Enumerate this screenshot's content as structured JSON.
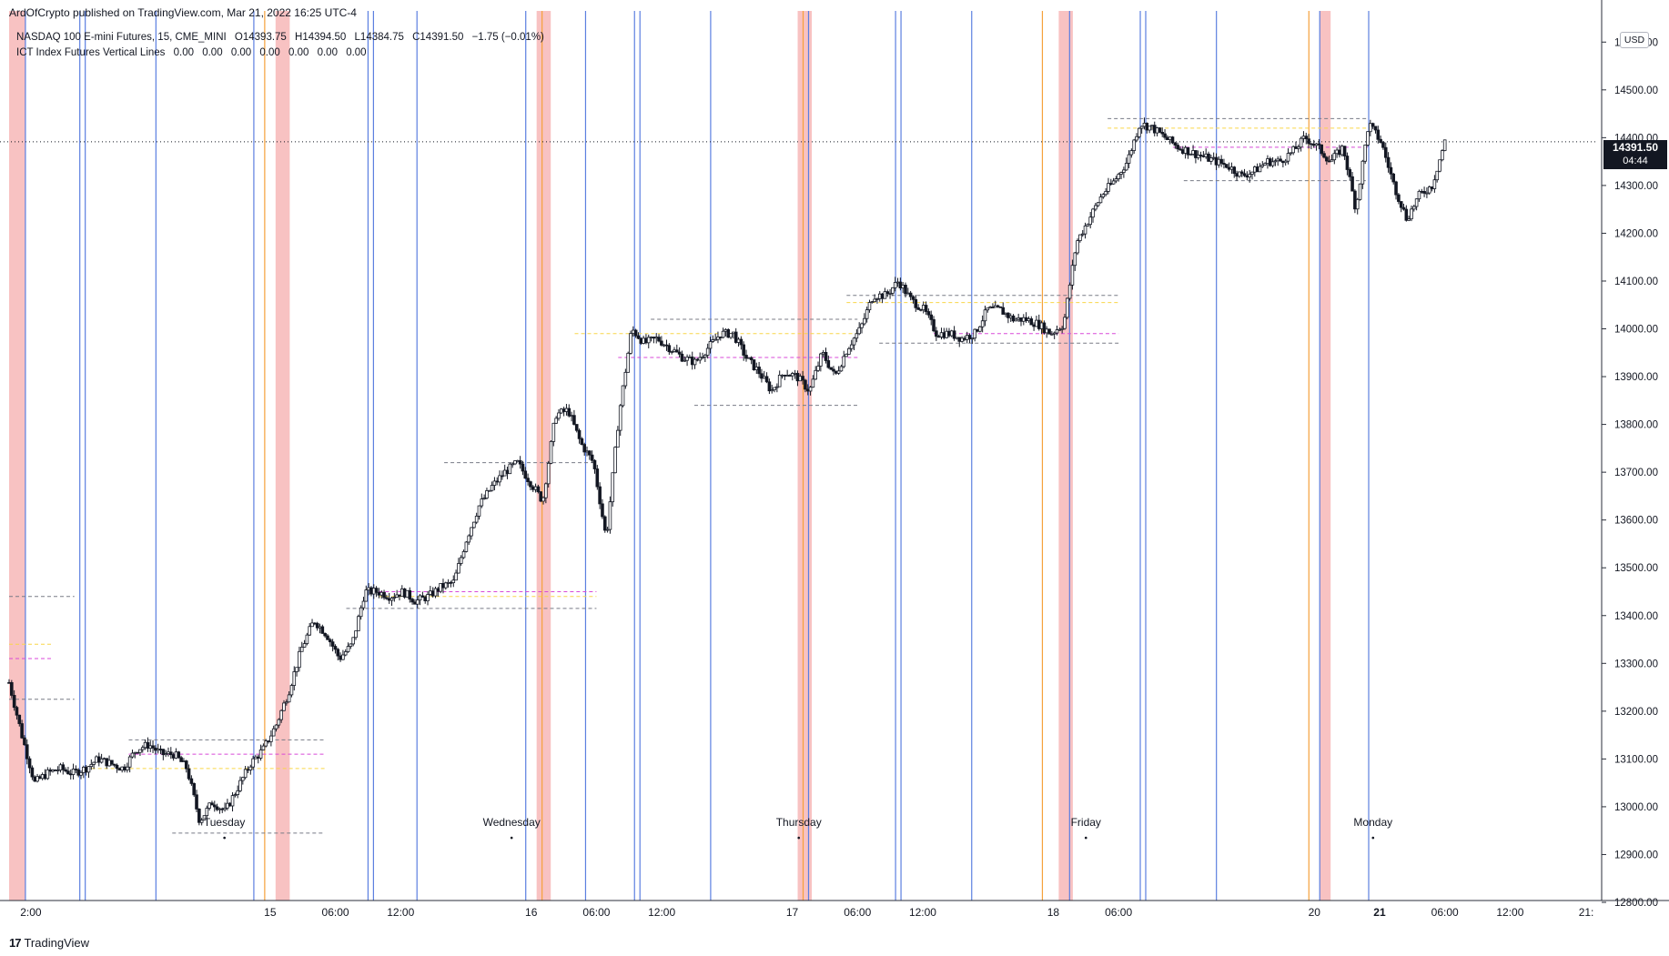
{
  "header": {
    "publisher_line": "ArdOfCrypto published on TradingView.com, Mar 21, 2022 16:25 UTC-4"
  },
  "legend": {
    "line1": {
      "symbol": "NASDAQ 100 E-mini Futures, 15, CME_MINI",
      "open": "O14393.75",
      "high": "H14394.50",
      "low": "L14384.75",
      "close": "C14391.50",
      "change": "−1.75 (−0.01%)"
    },
    "line2": {
      "indicator": "ICT Index Futures Vertical Lines",
      "values": [
        "0.00",
        "0.00",
        "0.00",
        "0.00",
        "0.00",
        "0.00",
        "0.00"
      ]
    }
  },
  "price_axis": {
    "currency": "USD",
    "last_price": "14391.50",
    "countdown": "04:44"
  },
  "footer": {
    "brand": "TradingView",
    "brand_mark": "17"
  },
  "colors": {
    "candle_up": "#ffffff",
    "candle_down": "#131722",
    "candle_border": "#131722",
    "blue_line": "#5b7fe0",
    "orange_line": "#f5a13a",
    "red_zone": "#f7b7b7",
    "dash_gray": "#787b86",
    "dash_yellow": "#f9d648",
    "dash_magenta": "#d849d8"
  },
  "chart_data": {
    "type": "candlestick",
    "title": "",
    "ylim": [
      12800,
      14650
    ],
    "y_ticks": [
      12800,
      12900,
      13000,
      13100,
      13200,
      13300,
      13400,
      13500,
      13600,
      13700,
      13800,
      13900,
      14000,
      14100,
      14200,
      14300,
      14400,
      14500,
      14600
    ],
    "y_tick_labels": [
      "12800.00",
      "12900.00",
      "13000.00",
      "13100.00",
      "13200.00",
      "13300.00",
      "13400.00",
      "13500.00",
      "13600.00",
      "13700.00",
      "13800.00",
      "13900.00",
      "14000.00",
      "14100.00",
      "14200.00",
      "14300.00",
      "14400.00",
      "14500.00",
      "14600.00"
    ],
    "x_ticks": [
      {
        "label": "2:00",
        "hour": 2
      },
      {
        "label": "15",
        "hour": 24
      },
      {
        "label": "06:00",
        "hour": 30
      },
      {
        "label": "12:00",
        "hour": 36
      },
      {
        "label": "16",
        "hour": 48
      },
      {
        "label": "06:00",
        "hour": 54
      },
      {
        "label": "12:00",
        "hour": 60
      },
      {
        "label": "17",
        "hour": 72
      },
      {
        "label": "06:00",
        "hour": 78
      },
      {
        "label": "12:00",
        "hour": 84
      },
      {
        "label": "18",
        "hour": 96
      },
      {
        "label": "06:00",
        "hour": 102
      },
      {
        "label": "20",
        "hour": 120
      },
      {
        "label": "21",
        "hour": 126
      },
      {
        "label": "06:00",
        "hour": 132
      },
      {
        "label": "12:00",
        "hour": 138
      },
      {
        "label": "21:",
        "hour": 145
      }
    ],
    "bold_x_ticks": [
      "21"
    ],
    "day_labels": [
      {
        "label": "Tuesday",
        "hour": 18
      },
      {
        "label": "Wednesday",
        "hour": 42
      },
      {
        "label": "Thursday",
        "hour": 66
      },
      {
        "label": "Friday",
        "hour": 90
      },
      {
        "label": "Monday",
        "hour": 114
      }
    ],
    "vertical_lines": {
      "blue": [
        1.5,
        6.5,
        7,
        13.5,
        22.5,
        33,
        33.5,
        37.5,
        47.5,
        53,
        57.5,
        58,
        64.5,
        73.5,
        81.5,
        82,
        88.5,
        97.5,
        104,
        104.5,
        111,
        120.5,
        125
      ],
      "orange": [
        23.5,
        49,
        73,
        95,
        119.5
      ],
      "red_zones": [
        [
          0,
          1.5
        ],
        [
          24.5,
          25.8
        ],
        [
          48.5,
          49.8
        ],
        [
          72.5,
          73.8
        ],
        [
          96.5,
          97.8
        ],
        [
          120.5,
          121.5
        ]
      ]
    },
    "levels": [
      {
        "color": "gray",
        "style": "dashed",
        "y": 13440,
        "x": [
          0,
          6
        ]
      },
      {
        "color": "yellow",
        "style": "dashed",
        "y": 13340,
        "x": [
          0,
          4
        ]
      },
      {
        "color": "magenta",
        "style": "dashed",
        "y": 13310,
        "x": [
          0,
          4
        ]
      },
      {
        "color": "gray",
        "style": "dashed",
        "y": 13225,
        "x": [
          0,
          6
        ]
      },
      {
        "color": "gray",
        "style": "dashed",
        "y": 13140,
        "x": [
          11,
          29
        ]
      },
      {
        "color": "magenta",
        "style": "dashed",
        "y": 13110,
        "x": [
          11,
          29
        ]
      },
      {
        "color": "yellow",
        "style": "dashed",
        "y": 13080,
        "x": [
          7,
          29
        ]
      },
      {
        "color": "gray",
        "style": "dashed",
        "y": 12945,
        "x": [
          15,
          29
        ]
      },
      {
        "color": "gray",
        "style": "dashed",
        "y": 13720,
        "x": [
          40,
          54
        ]
      },
      {
        "color": "magenta",
        "style": "dashed",
        "y": 13450,
        "x": [
          34,
          54
        ]
      },
      {
        "color": "yellow",
        "style": "dashed",
        "y": 13440,
        "x": [
          34,
          54
        ]
      },
      {
        "color": "gray",
        "style": "dashed",
        "y": 13415,
        "x": [
          31,
          54
        ]
      },
      {
        "color": "gray",
        "style": "dashed",
        "y": 14020,
        "x": [
          59,
          78
        ]
      },
      {
        "color": "yellow",
        "style": "dashed",
        "y": 13990,
        "x": [
          52,
          78
        ]
      },
      {
        "color": "magenta",
        "style": "dashed",
        "y": 13940,
        "x": [
          56,
          78
        ]
      },
      {
        "color": "gray",
        "style": "dashed",
        "y": 13840,
        "x": [
          63,
          78
        ]
      },
      {
        "color": "gray",
        "style": "dashed",
        "y": 14070,
        "x": [
          77,
          102
        ]
      },
      {
        "color": "yellow",
        "style": "dashed",
        "y": 14055,
        "x": [
          77,
          102
        ]
      },
      {
        "color": "magenta",
        "style": "dashed",
        "y": 13990,
        "x": [
          85,
          102
        ]
      },
      {
        "color": "gray",
        "style": "dashed",
        "y": 13970,
        "x": [
          80,
          102
        ]
      },
      {
        "color": "gray",
        "style": "dashed",
        "y": 14440,
        "x": [
          101,
          125
        ]
      },
      {
        "color": "yellow",
        "style": "dashed",
        "y": 14420,
        "x": [
          101,
          125
        ]
      },
      {
        "color": "magenta",
        "style": "dashed",
        "y": 14380,
        "x": [
          107,
          125
        ]
      },
      {
        "color": "gray",
        "style": "dashed",
        "y": 14310,
        "x": [
          108,
          125
        ]
      }
    ],
    "last_price_line": 14391.5,
    "price_path": [
      [
        0,
        13260
      ],
      [
        1,
        13150
      ],
      [
        2,
        13050
      ],
      [
        3,
        13070
      ],
      [
        4,
        13080
      ],
      [
        5,
        13070
      ],
      [
        6,
        13080
      ],
      [
        7,
        13100
      ],
      [
        8,
        13090
      ],
      [
        9,
        13080
      ],
      [
        10,
        13120
      ],
      [
        11,
        13130
      ],
      [
        12,
        13110
      ],
      [
        13,
        13110
      ],
      [
        14,
        13080
      ],
      [
        15,
        12970
      ],
      [
        16,
        13010
      ],
      [
        17,
        12990
      ],
      [
        18,
        13040
      ],
      [
        19,
        13090
      ],
      [
        20,
        13120
      ],
      [
        21,
        13170
      ],
      [
        22,
        13240
      ],
      [
        23,
        13330
      ],
      [
        24,
        13390
      ],
      [
        25,
        13360
      ],
      [
        26,
        13310
      ],
      [
        27,
        13340
      ],
      [
        28,
        13450
      ],
      [
        29,
        13450
      ],
      [
        30,
        13440
      ],
      [
        31,
        13450
      ],
      [
        32,
        13430
      ],
      [
        33,
        13440
      ],
      [
        34,
        13460
      ],
      [
        35,
        13470
      ],
      [
        36,
        13560
      ],
      [
        37,
        13630
      ],
      [
        38,
        13670
      ],
      [
        39,
        13700
      ],
      [
        40,
        13720
      ],
      [
        41,
        13680
      ],
      [
        42,
        13640
      ],
      [
        43,
        13820
      ],
      [
        44,
        13830
      ],
      [
        45,
        13760
      ],
      [
        46,
        13720
      ],
      [
        47,
        13560
      ],
      [
        48,
        13820
      ],
      [
        49,
        14000
      ],
      [
        50,
        13970
      ],
      [
        51,
        13980
      ],
      [
        52,
        13960
      ],
      [
        53,
        13940
      ],
      [
        54,
        13930
      ],
      [
        55,
        13960
      ],
      [
        56,
        13990
      ],
      [
        57,
        13990
      ],
      [
        58,
        13940
      ],
      [
        59,
        13910
      ],
      [
        60,
        13870
      ],
      [
        61,
        13910
      ],
      [
        62,
        13900
      ],
      [
        63,
        13870
      ],
      [
        64,
        13950
      ],
      [
        65,
        13900
      ],
      [
        66,
        13960
      ],
      [
        67,
        14000
      ],
      [
        68,
        14070
      ],
      [
        69,
        14070
      ],
      [
        70,
        14100
      ],
      [
        71,
        14060
      ],
      [
        72,
        14040
      ],
      [
        73,
        13990
      ],
      [
        74,
        13990
      ],
      [
        75,
        13980
      ],
      [
        76,
        13990
      ],
      [
        77,
        14040
      ],
      [
        78,
        14040
      ],
      [
        79,
        14020
      ],
      [
        80,
        14020
      ],
      [
        81,
        14010
      ],
      [
        82,
        13990
      ],
      [
        83,
        14010
      ],
      [
        84,
        14180
      ],
      [
        85,
        14230
      ],
      [
        86,
        14280
      ],
      [
        87,
        14310
      ],
      [
        88,
        14350
      ],
      [
        89,
        14430
      ],
      [
        90,
        14420
      ],
      [
        91,
        14400
      ],
      [
        92,
        14380
      ],
      [
        93,
        14370
      ],
      [
        94,
        14360
      ],
      [
        95,
        14350
      ],
      [
        96,
        14340
      ],
      [
        97,
        14320
      ],
      [
        98,
        14330
      ],
      [
        99,
        14350
      ],
      [
        100,
        14350
      ],
      [
        101,
        14370
      ],
      [
        102,
        14400
      ],
      [
        103,
        14380
      ],
      [
        104,
        14350
      ],
      [
        105,
        14380
      ],
      [
        106,
        14250
      ],
      [
        107,
        14430
      ],
      [
        108,
        14390
      ],
      [
        109,
        14300
      ],
      [
        110,
        14230
      ],
      [
        111,
        14280
      ],
      [
        112,
        14300
      ],
      [
        113,
        14391.5
      ]
    ]
  }
}
